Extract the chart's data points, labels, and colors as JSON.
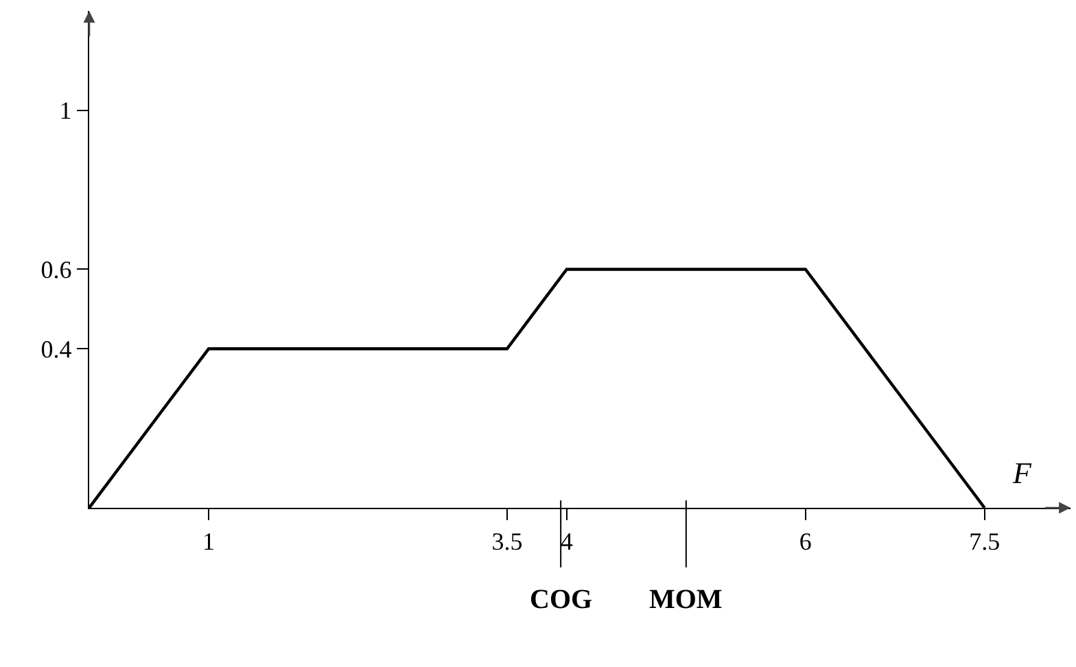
{
  "chart_data": {
    "type": "line",
    "xlabel": "F",
    "x": [
      0,
      1,
      3.5,
      4,
      6,
      7.5
    ],
    "series": [
      {
        "color": "#000000",
        "values": [
          0,
          0.4,
          0.4,
          0.6,
          0.6,
          0
        ]
      }
    ],
    "xlim": [
      0,
      8.22
    ],
    "ylim": [
      0,
      1.25
    ],
    "xticks": [
      1,
      3.5,
      4,
      6,
      7.5
    ],
    "yticks": [
      0.4,
      0.6,
      1
    ],
    "ref_lines": [
      {
        "axis": "x",
        "value": 3.95,
        "label": "COG"
      },
      {
        "axis": "x",
        "value": 5,
        "label": "MOM"
      }
    ],
    "grid": false,
    "marker": "none",
    "line_style": "solid"
  }
}
